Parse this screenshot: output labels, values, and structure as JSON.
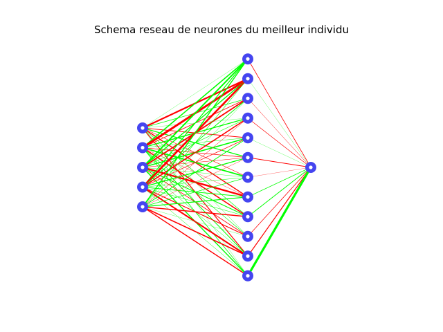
{
  "title": "Schema reseau de neurones du meilleur individu",
  "colors": {
    "positive_weight": "#00ff00",
    "negative_weight": "#ff0000",
    "node_outer": "#4545f0",
    "node_inner": "#ffffff",
    "background": "#ffffff"
  },
  "network": {
    "layers": [
      5,
      12,
      1
    ],
    "weights_input_hidden": [
      [
        0.2,
        -2.2,
        0.8,
        0.3,
        -1.0,
        1.2,
        -0.6,
        -1.4,
        0.7,
        0.4,
        -1.2,
        0.3
      ],
      [
        1.6,
        -3.0,
        -0.8,
        1.4,
        0.5,
        -0.7,
        1.8,
        -0.4,
        -1.6,
        0.6,
        1.0,
        0.8
      ],
      [
        2.0,
        1.4,
        -1.8,
        0.6,
        1.6,
        -0.5,
        0.4,
        -2.4,
        1.2,
        -0.8,
        0.5,
        1.4
      ],
      [
        1.2,
        -2.6,
        1.0,
        -1.6,
        -0.7,
        1.4,
        0.5,
        1.0,
        0.6,
        -1.2,
        -2.0,
        0.5
      ],
      [
        1.4,
        0.6,
        0.4,
        -0.5,
        1.0,
        -0.4,
        0.8,
        1.2,
        -1.4,
        0.3,
        -1.6,
        -1.4
      ]
    ],
    "weights_hidden_output": [
      -0.8,
      0.2,
      -0.5,
      -0.7,
      0.3,
      -1.0,
      -0.3,
      0.8,
      1.0,
      -0.8,
      -1.2,
      3.2
    ]
  }
}
